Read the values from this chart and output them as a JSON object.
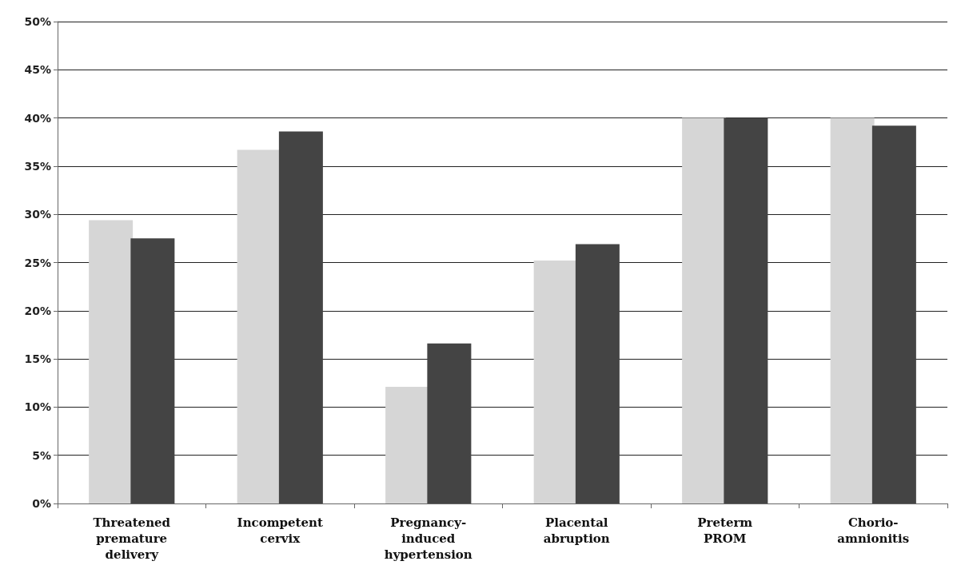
{
  "chart_data": {
    "type": "bar",
    "categories": [
      "Threatened\npremature\ndelivery",
      "Incompetent\ncervix",
      "Pregnancy-\ninduced\nhypertension",
      "Placental\nabruption",
      "Preterm\nPROM",
      "Chorio-\namnionitis"
    ],
    "series": [
      {
        "color": "#d6d6d6",
        "values": [
          29.4,
          36.7,
          12.1,
          25.2,
          40.0,
          40.0
        ]
      },
      {
        "color": "#444444",
        "values": [
          27.5,
          38.6,
          16.6,
          26.9,
          40.0,
          39.2
        ]
      }
    ],
    "ylim": [
      0,
      50
    ],
    "yticks": [
      {
        "value": 0,
        "label": "0%"
      },
      {
        "value": 5,
        "label": "5%"
      },
      {
        "value": 10,
        "label": "10%"
      },
      {
        "value": 15,
        "label": "15%"
      },
      {
        "value": 20,
        "label": "20%"
      },
      {
        "value": 25,
        "label": "25%"
      },
      {
        "value": 30,
        "label": "30%"
      },
      {
        "value": 35,
        "label": "35%"
      },
      {
        "value": 40,
        "label": "40%"
      },
      {
        "value": 45,
        "label": "45%"
      },
      {
        "value": 50,
        "label": "50%"
      }
    ],
    "grid": "y"
  }
}
